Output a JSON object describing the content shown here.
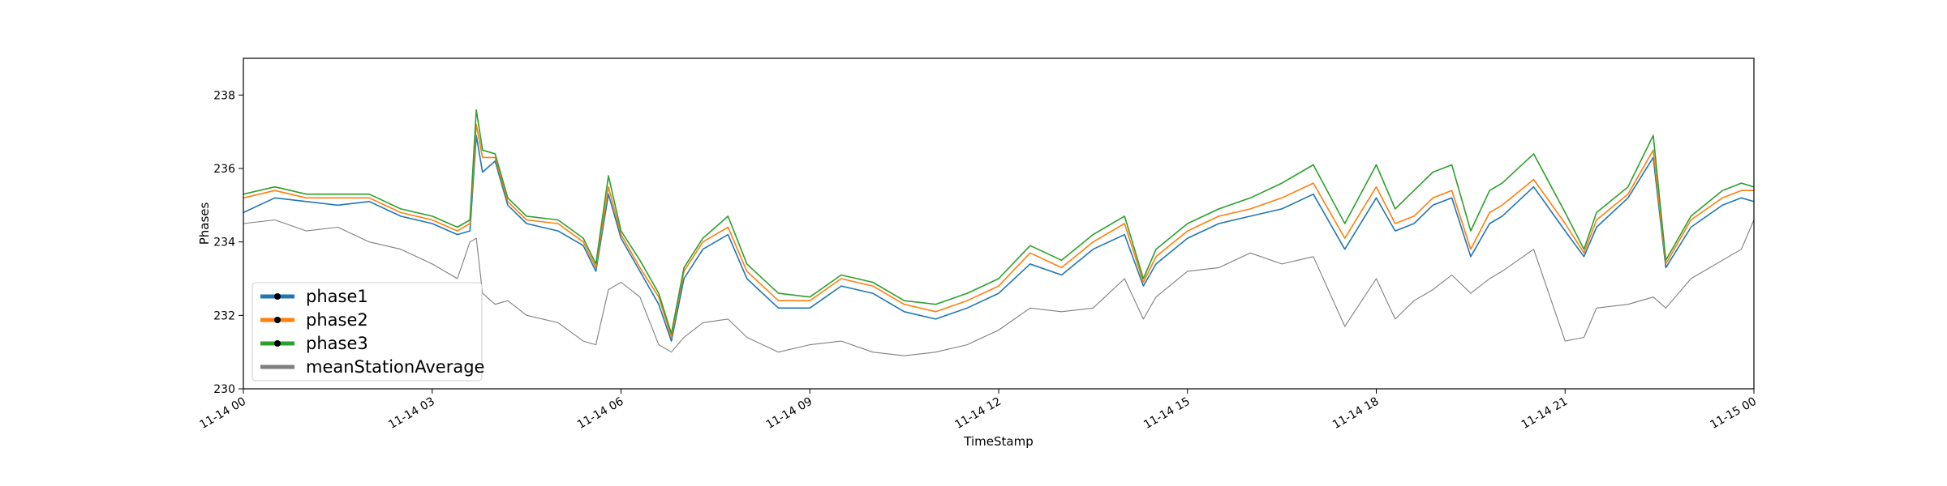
{
  "chart_data": {
    "type": "line",
    "xlabel": "TimeStamp",
    "ylabel": "Phases",
    "ylim": [
      230,
      239
    ],
    "xlim": [
      "11-14 00:00",
      "11-15 00:00"
    ],
    "x_ticks": [
      "11-14 00",
      "11-14 03",
      "11-14 06",
      "11-14 09",
      "11-14 12",
      "11-14 15",
      "11-14 18",
      "11-14 21",
      "11-15 00"
    ],
    "y_ticks": [
      "230",
      "232",
      "234",
      "236",
      "238"
    ],
    "grid": false,
    "legend_position": "lower-left",
    "x_hours": [
      0,
      0.5,
      1,
      1.5,
      2,
      2.5,
      3,
      3.4,
      3.6,
      3.7,
      3.8,
      4.0,
      4.2,
      4.5,
      5.0,
      5.4,
      5.6,
      5.8,
      6.0,
      6.3,
      6.6,
      6.8,
      7.0,
      7.3,
      7.7,
      8.0,
      8.5,
      9.0,
      9.5,
      10.0,
      10.5,
      11.0,
      11.5,
      12.0,
      12.5,
      13.0,
      13.5,
      14.0,
      14.3,
      14.5,
      15.0,
      15.5,
      16.0,
      16.5,
      17.0,
      17.5,
      18.0,
      18.3,
      18.6,
      18.9,
      19.2,
      19.5,
      19.8,
      20.0,
      20.5,
      21.0,
      21.3,
      21.5,
      22.0,
      22.4,
      22.6,
      23.0,
      23.5,
      23.8,
      24.0
    ],
    "series": [
      {
        "name": "phase1",
        "color": "#1f77b4",
        "marker": true,
        "values": [
          234.8,
          235.2,
          235.1,
          235.0,
          235.1,
          234.7,
          234.5,
          234.2,
          234.3,
          236.9,
          235.9,
          236.2,
          235.0,
          234.5,
          234.3,
          233.9,
          233.2,
          235.3,
          234.1,
          233.2,
          232.3,
          231.3,
          233.0,
          233.8,
          234.2,
          233.0,
          232.2,
          232.2,
          232.8,
          232.6,
          232.1,
          231.9,
          232.2,
          232.6,
          233.4,
          233.1,
          233.8,
          234.2,
          232.8,
          233.4,
          234.1,
          234.5,
          234.7,
          234.9,
          235.3,
          233.8,
          235.2,
          234.3,
          234.5,
          235.0,
          235.2,
          233.6,
          234.5,
          234.7,
          235.5,
          234.3,
          233.6,
          234.4,
          235.2,
          236.3,
          233.3,
          234.4,
          235.0,
          235.2,
          235.1
        ]
      },
      {
        "name": "phase2",
        "color": "#ff7f0e",
        "marker": true,
        "values": [
          235.2,
          235.4,
          235.2,
          235.2,
          235.2,
          234.8,
          234.6,
          234.3,
          234.5,
          237.2,
          236.3,
          236.3,
          235.1,
          234.6,
          234.5,
          234.0,
          233.3,
          235.5,
          234.2,
          233.3,
          232.5,
          231.4,
          233.2,
          234.0,
          234.4,
          233.2,
          232.4,
          232.4,
          233.0,
          232.8,
          232.3,
          232.1,
          232.4,
          232.8,
          233.7,
          233.3,
          234.0,
          234.5,
          232.9,
          233.6,
          234.3,
          234.7,
          234.9,
          235.2,
          235.6,
          234.1,
          235.5,
          234.5,
          234.7,
          235.2,
          235.4,
          233.8,
          234.8,
          235.0,
          235.7,
          234.5,
          233.7,
          234.6,
          235.3,
          236.5,
          233.4,
          234.6,
          235.2,
          235.4,
          235.4
        ]
      },
      {
        "name": "phase3",
        "color": "#2ca02c",
        "marker": true,
        "values": [
          235.3,
          235.5,
          235.3,
          235.3,
          235.3,
          234.9,
          234.7,
          234.4,
          234.6,
          237.6,
          236.5,
          236.4,
          235.2,
          234.7,
          234.6,
          234.1,
          233.4,
          235.8,
          234.3,
          233.5,
          232.6,
          231.5,
          233.3,
          234.1,
          234.7,
          233.4,
          232.6,
          232.5,
          233.1,
          232.9,
          232.4,
          232.3,
          232.6,
          233.0,
          233.9,
          233.5,
          234.2,
          234.7,
          233.0,
          233.8,
          234.5,
          234.9,
          235.2,
          235.6,
          236.1,
          234.5,
          236.1,
          234.9,
          235.4,
          235.9,
          236.1,
          234.3,
          235.4,
          235.6,
          236.4,
          234.8,
          233.8,
          234.8,
          235.5,
          236.9,
          233.5,
          234.7,
          235.4,
          235.6,
          235.5
        ]
      },
      {
        "name": "meanStationAverage",
        "color": "#7f7f7f",
        "marker": false,
        "values": [
          234.5,
          234.6,
          234.3,
          234.4,
          234.0,
          233.8,
          233.4,
          233.0,
          234.0,
          234.1,
          232.6,
          232.3,
          232.4,
          232.0,
          231.8,
          231.3,
          231.2,
          232.7,
          232.9,
          232.5,
          231.2,
          231.0,
          231.4,
          231.8,
          231.9,
          231.4,
          231.0,
          231.2,
          231.3,
          231.0,
          230.9,
          231.0,
          231.2,
          231.6,
          232.2,
          232.1,
          232.2,
          233.0,
          231.9,
          232.5,
          233.2,
          233.3,
          233.7,
          233.4,
          233.6,
          231.7,
          233.0,
          231.9,
          232.4,
          232.7,
          233.1,
          232.6,
          233.0,
          233.2,
          233.8,
          231.3,
          231.4,
          232.2,
          232.3,
          232.5,
          232.2,
          233.0,
          233.5,
          233.8,
          234.6
        ]
      }
    ]
  }
}
